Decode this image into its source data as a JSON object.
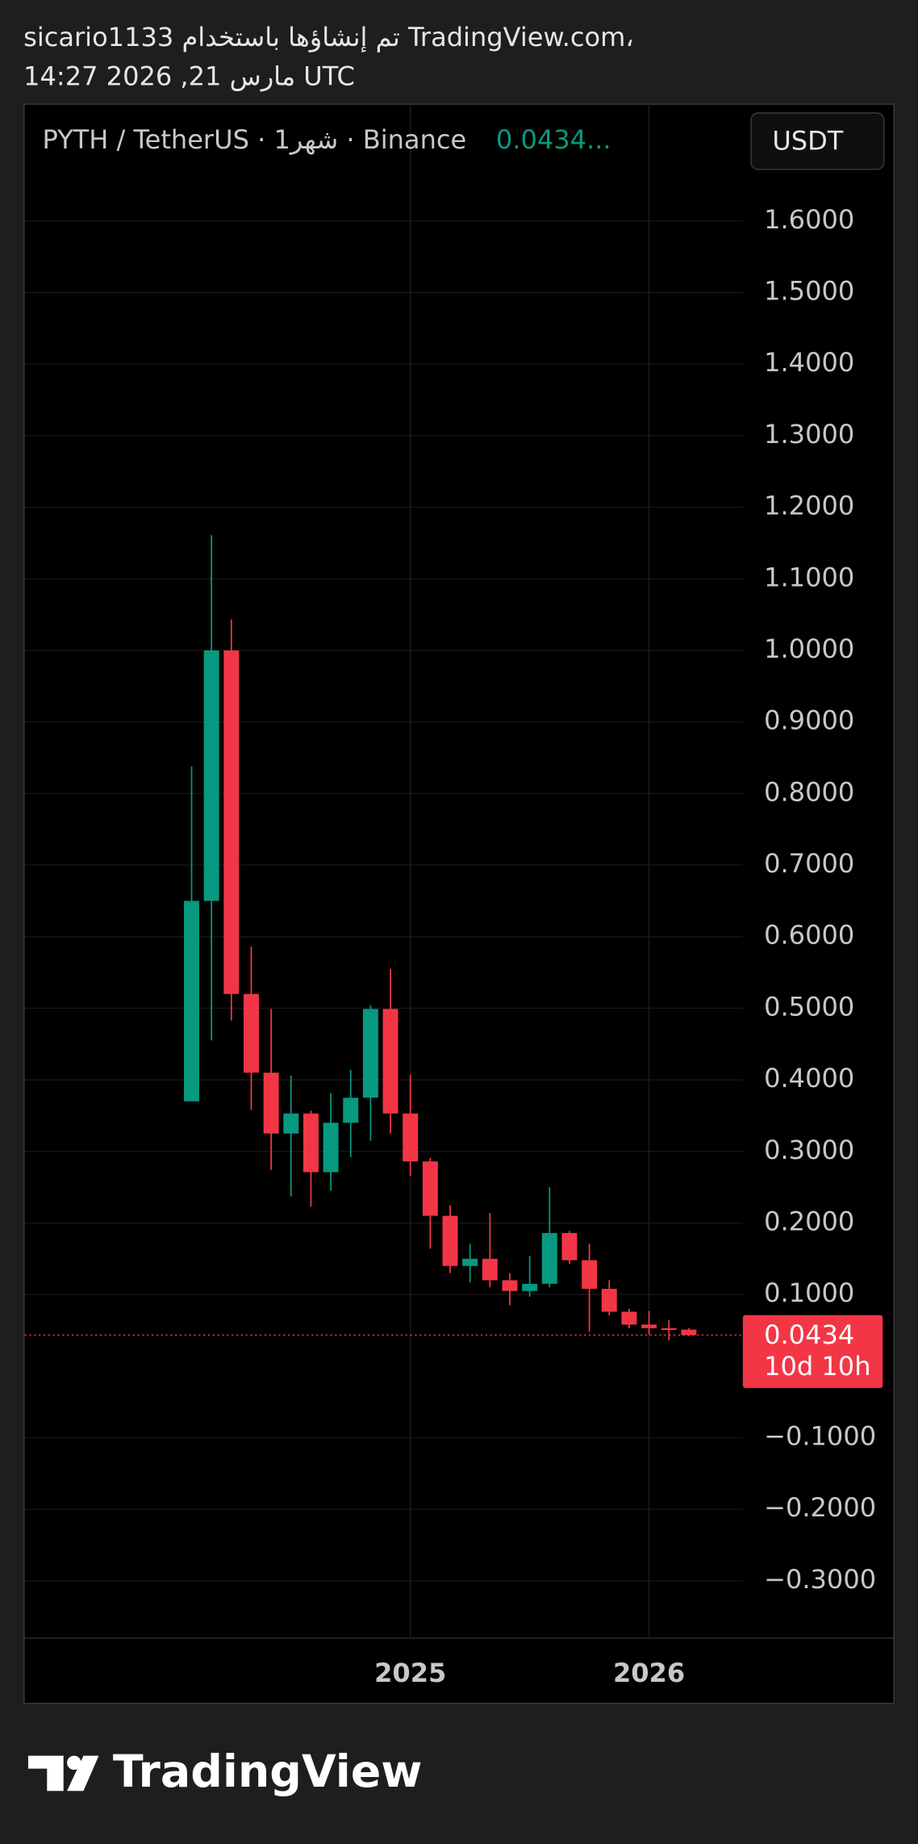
{
  "header": {
    "line1": "sicario1133 تم إنشاؤها باستخدام TradingView.com،",
    "line2": "14:27 2026 ,21 مارس UTC"
  },
  "footer": {
    "brand": "TradingView"
  },
  "chart_data": {
    "type": "candlestick",
    "legend": "PYTH / TetherUS · 1شهر · Binance",
    "legend_price": "0.0434...",
    "currency_button": "USDT",
    "categories": [
      null,
      null,
      null,
      null,
      null,
      null,
      null,
      null,
      null,
      null,
      null,
      "2025",
      null,
      null,
      null,
      null,
      null,
      null,
      null,
      null,
      null,
      null,
      null,
      "2026",
      null,
      null
    ],
    "open": [
      0.37,
      0.65,
      1.0,
      0.52,
      0.41,
      0.325,
      0.353,
      0.271,
      0.34,
      0.375,
      0.499,
      0.353,
      0.286,
      0.21,
      0.14,
      0.15,
      0.12,
      0.105,
      0.115,
      0.186,
      0.148,
      0.108,
      0.076,
      0.058,
      0.053,
      0.051
    ],
    "high": [
      0.838,
      1.161,
      1.043,
      0.586,
      0.499,
      0.406,
      0.357,
      0.381,
      0.414,
      0.504,
      0.555,
      0.407,
      0.291,
      0.225,
      0.171,
      0.214,
      0.13,
      0.154,
      0.25,
      0.189,
      0.171,
      0.12,
      0.08,
      0.077,
      0.064,
      0.053
    ],
    "low": [
      0.37,
      0.455,
      0.483,
      0.358,
      0.274,
      0.237,
      0.223,
      0.245,
      0.292,
      0.315,
      0.325,
      0.266,
      0.164,
      0.13,
      0.117,
      0.11,
      0.085,
      0.097,
      0.11,
      0.143,
      0.048,
      0.071,
      0.053,
      0.044,
      0.036,
      0.042
    ],
    "close": [
      0.65,
      1.0,
      0.52,
      0.41,
      0.325,
      0.353,
      0.271,
      0.34,
      0.375,
      0.499,
      0.353,
      0.286,
      0.21,
      0.14,
      0.15,
      0.12,
      0.105,
      0.115,
      0.186,
      0.148,
      0.108,
      0.076,
      0.058,
      0.053,
      0.051,
      0.0434
    ],
    "up_color": "#089981",
    "down_color": "#f23645",
    "last_price": 0.0434,
    "countdown": "10d 10h",
    "ylim": [
      -0.38,
      1.764
    ],
    "yticks": [
      {
        "value": 1.6,
        "label": "1.6000"
      },
      {
        "value": 1.5,
        "label": "1.5000"
      },
      {
        "value": 1.4,
        "label": "1.4000"
      },
      {
        "value": 1.3,
        "label": "1.3000"
      },
      {
        "value": 1.2,
        "label": "1.2000"
      },
      {
        "value": 1.1,
        "label": "1.1000"
      },
      {
        "value": 1.0,
        "label": "1.0000"
      },
      {
        "value": 0.9,
        "label": "0.9000"
      },
      {
        "value": 0.8,
        "label": "0.8000"
      },
      {
        "value": 0.7,
        "label": "0.7000"
      },
      {
        "value": 0.6,
        "label": "0.6000"
      },
      {
        "value": 0.5,
        "label": "0.5000"
      },
      {
        "value": 0.4,
        "label": "0.4000"
      },
      {
        "value": 0.3,
        "label": "0.3000"
      },
      {
        "value": 0.2,
        "label": "0.2000"
      },
      {
        "value": 0.1,
        "label": "0.1000"
      },
      {
        "value": -0.1,
        "label": "−0.1000"
      },
      {
        "value": -0.2,
        "label": "−0.2000"
      },
      {
        "value": -0.3,
        "label": "−0.3000"
      }
    ],
    "grid": true
  }
}
